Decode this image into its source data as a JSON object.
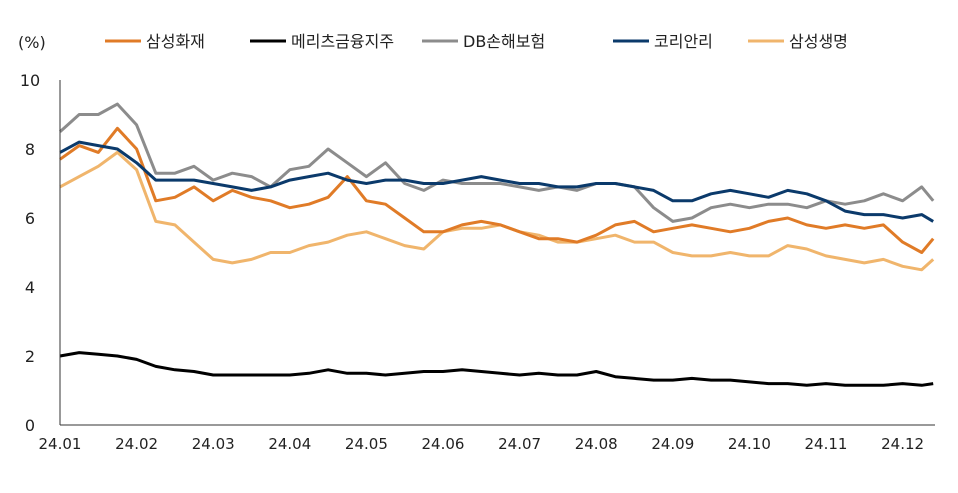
{
  "chart_data": {
    "type": "line",
    "ylabel": "(%)",
    "ylim": [
      0,
      10
    ],
    "yticks": [
      0,
      2,
      4,
      6,
      8,
      10
    ],
    "xlabel": "",
    "xtick_labels": [
      "24.01",
      "24.02",
      "24.03",
      "24.04",
      "24.05",
      "24.06",
      "24.07",
      "24.08",
      "24.09",
      "24.10",
      "24.11",
      "24.12"
    ],
    "x_unit": "months since 24.01",
    "x": [
      0,
      0.25,
      0.5,
      0.75,
      1,
      1.25,
      1.5,
      1.75,
      2,
      2.25,
      2.5,
      2.75,
      3,
      3.25,
      3.5,
      3.75,
      4,
      4.25,
      4.5,
      4.75,
      5,
      5.25,
      5.5,
      5.75,
      6,
      6.25,
      6.5,
      6.75,
      7,
      7.25,
      7.5,
      7.75,
      8,
      8.25,
      8.5,
      8.75,
      9,
      9.25,
      9.5,
      9.75,
      10,
      10.25,
      10.5,
      10.75,
      11,
      11.25,
      11.4
    ],
    "legend_position": "top",
    "grid": false,
    "series": [
      {
        "name": "삼성화재",
        "color": "#E07B27",
        "values": [
          7.7,
          8.1,
          7.9,
          8.6,
          8.0,
          6.5,
          6.6,
          6.9,
          6.5,
          6.8,
          6.6,
          6.5,
          6.3,
          6.4,
          6.6,
          7.2,
          6.5,
          6.4,
          6.0,
          5.6,
          5.6,
          5.8,
          5.9,
          5.8,
          5.6,
          5.4,
          5.4,
          5.3,
          5.5,
          5.8,
          5.9,
          5.6,
          5.7,
          5.8,
          5.7,
          5.6,
          5.7,
          5.9,
          6.0,
          5.8,
          5.7,
          5.8,
          5.7,
          5.8,
          5.3,
          5.0,
          5.4
        ]
      },
      {
        "name": "메리츠금융지주",
        "color": "#000000",
        "values": [
          2.0,
          2.1,
          2.05,
          2.0,
          1.9,
          1.7,
          1.6,
          1.55,
          1.45,
          1.45,
          1.45,
          1.45,
          1.45,
          1.5,
          1.6,
          1.5,
          1.5,
          1.45,
          1.5,
          1.55,
          1.55,
          1.6,
          1.55,
          1.5,
          1.45,
          1.5,
          1.45,
          1.45,
          1.55,
          1.4,
          1.35,
          1.3,
          1.3,
          1.35,
          1.3,
          1.3,
          1.25,
          1.2,
          1.2,
          1.15,
          1.2,
          1.15,
          1.15,
          1.15,
          1.2,
          1.15,
          1.2
        ]
      },
      {
        "name": "DB손해보험",
        "color": "#8C8C8C",
        "values": [
          8.5,
          9.0,
          9.0,
          9.3,
          8.7,
          7.3,
          7.3,
          7.5,
          7.1,
          7.3,
          7.2,
          6.9,
          7.4,
          7.5,
          8.0,
          7.6,
          7.2,
          7.6,
          7.0,
          6.8,
          7.1,
          7.0,
          7.0,
          7.0,
          6.9,
          6.8,
          6.9,
          6.8,
          7.0,
          7.0,
          6.9,
          6.3,
          5.9,
          6.0,
          6.3,
          6.4,
          6.3,
          6.4,
          6.4,
          6.3,
          6.5,
          6.4,
          6.5,
          6.7,
          6.5,
          6.9,
          6.5
        ]
      },
      {
        "name": "코리안리",
        "color": "#0B3A6B",
        "values": [
          7.9,
          8.2,
          8.1,
          8.0,
          7.6,
          7.1,
          7.1,
          7.1,
          7.0,
          6.9,
          6.8,
          6.9,
          7.1,
          7.2,
          7.3,
          7.1,
          7.0,
          7.1,
          7.1,
          7.0,
          7.0,
          7.1,
          7.2,
          7.1,
          7.0,
          7.0,
          6.9,
          6.9,
          7.0,
          7.0,
          6.9,
          6.8,
          6.5,
          6.5,
          6.7,
          6.8,
          6.7,
          6.6,
          6.8,
          6.7,
          6.5,
          6.2,
          6.1,
          6.1,
          6.0,
          6.1,
          5.9
        ]
      },
      {
        "name": "삼성생명",
        "color": "#F0B56C",
        "values": [
          6.9,
          7.2,
          7.5,
          7.9,
          7.4,
          5.9,
          5.8,
          5.3,
          4.8,
          4.7,
          4.8,
          5.0,
          5.0,
          5.2,
          5.3,
          5.5,
          5.6,
          5.4,
          5.2,
          5.1,
          5.6,
          5.7,
          5.7,
          5.8,
          5.6,
          5.5,
          5.3,
          5.3,
          5.4,
          5.5,
          5.3,
          5.3,
          5.0,
          4.9,
          4.9,
          5.0,
          4.9,
          4.9,
          5.2,
          5.1,
          4.9,
          4.8,
          4.7,
          4.8,
          4.6,
          4.5,
          4.8
        ]
      }
    ]
  }
}
